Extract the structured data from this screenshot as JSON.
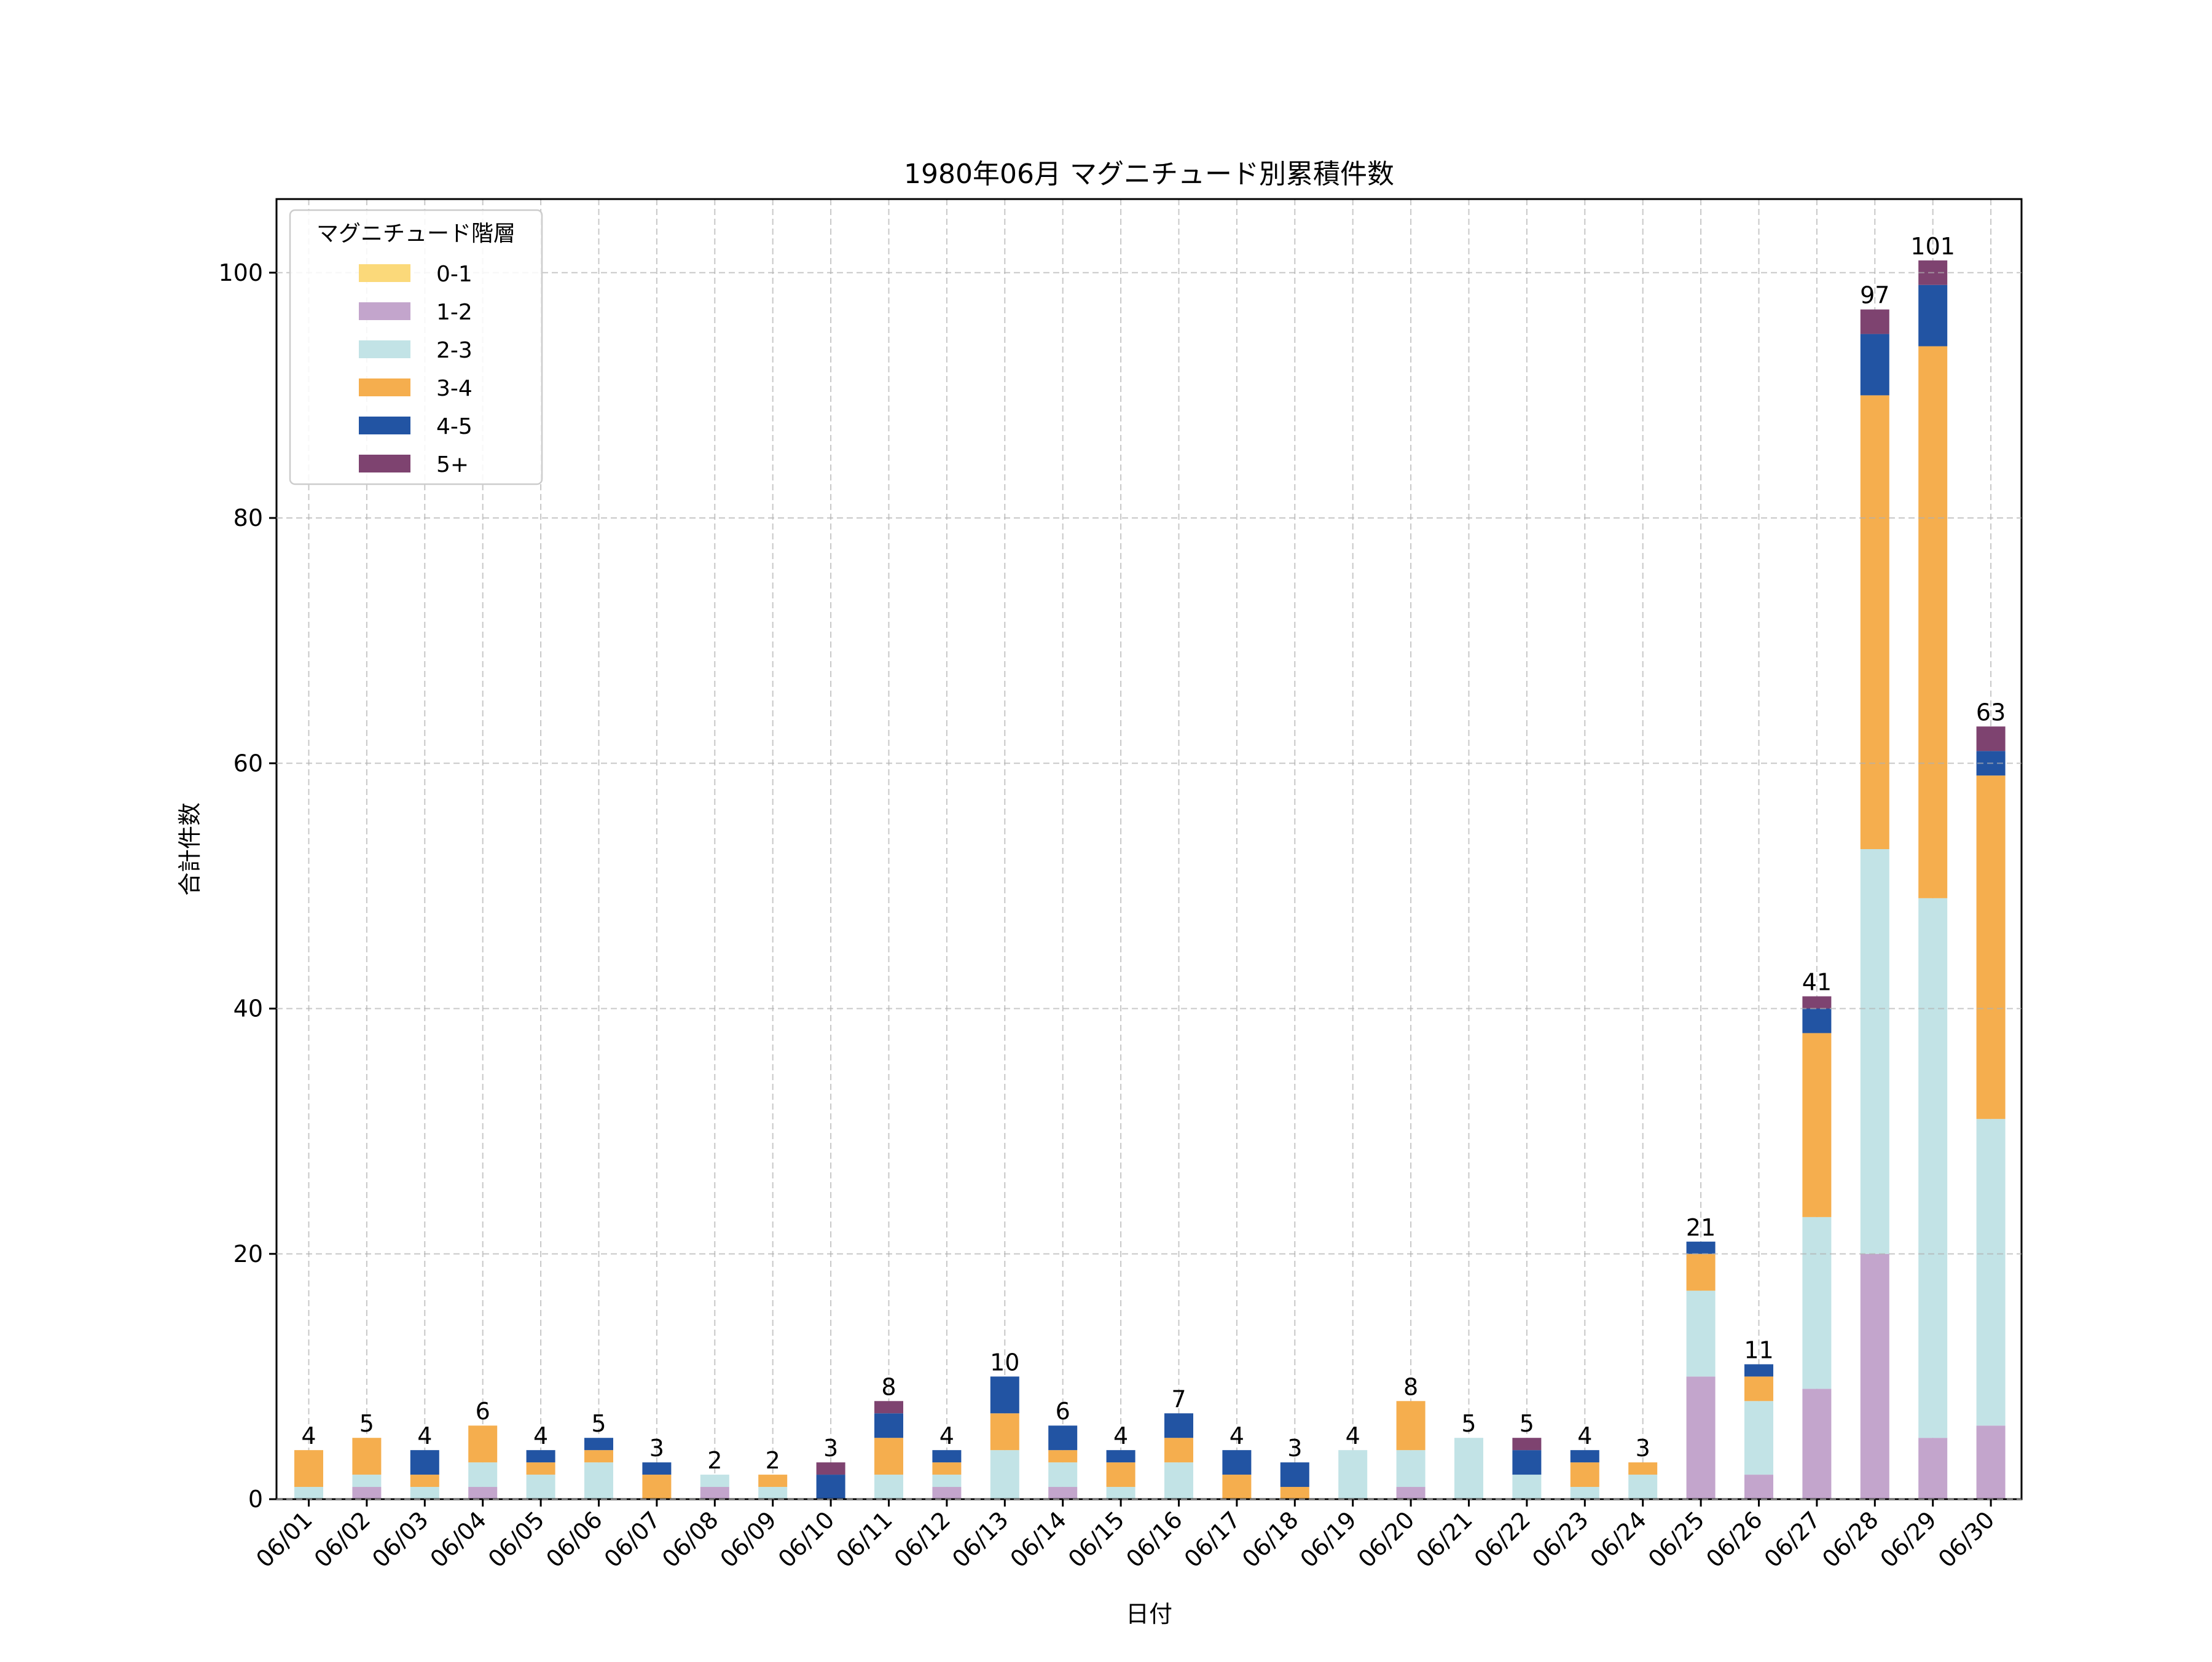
{
  "chart_data": {
    "type": "bar",
    "stacked": true,
    "title": "1980年06月 マグニチュード別累積件数",
    "xlabel": "日付",
    "ylabel": "合計件数",
    "ylim": [
      0,
      106
    ],
    "yticks": [
      0,
      20,
      40,
      60,
      80,
      100
    ],
    "grid": true,
    "legend": {
      "title": "マグニチュード階層",
      "placement": "top-left"
    },
    "categories": [
      "06/01",
      "06/02",
      "06/03",
      "06/04",
      "06/05",
      "06/06",
      "06/07",
      "06/08",
      "06/09",
      "06/10",
      "06/11",
      "06/12",
      "06/13",
      "06/14",
      "06/15",
      "06/16",
      "06/17",
      "06/18",
      "06/19",
      "06/20",
      "06/21",
      "06/22",
      "06/23",
      "06/24",
      "06/25",
      "06/26",
      "06/27",
      "06/28",
      "06/29",
      "06/30"
    ],
    "series": [
      {
        "name": "0-1",
        "color": "#FBD97A",
        "values": [
          0,
          0,
          0,
          0,
          0,
          0,
          0,
          0,
          0,
          0,
          0,
          0,
          0,
          0,
          0,
          0,
          0,
          0,
          0,
          0,
          0,
          0,
          0,
          0,
          0,
          0,
          0,
          0,
          0,
          0
        ]
      },
      {
        "name": "1-2",
        "color": "#C3A5CC",
        "values": [
          0,
          1,
          0,
          1,
          0,
          0,
          0,
          1,
          0,
          0,
          0,
          1,
          0,
          1,
          0,
          0,
          0,
          0,
          0,
          1,
          0,
          0,
          0,
          0,
          10,
          2,
          9,
          20,
          5,
          6
        ]
      },
      {
        "name": "2-3",
        "color": "#C2E3E6",
        "values": [
          1,
          1,
          1,
          2,
          2,
          3,
          0,
          1,
          1,
          0,
          2,
          1,
          4,
          2,
          1,
          3,
          0,
          0,
          4,
          3,
          5,
          2,
          1,
          2,
          7,
          6,
          14,
          33,
          44,
          25
        ]
      },
      {
        "name": "3-4",
        "color": "#F5AE4E",
        "values": [
          3,
          3,
          1,
          3,
          1,
          1,
          2,
          0,
          1,
          0,
          3,
          1,
          3,
          1,
          2,
          2,
          2,
          1,
          0,
          4,
          0,
          0,
          2,
          1,
          3,
          2,
          15,
          37,
          45,
          28
        ]
      },
      {
        "name": "4-5",
        "color": "#2254A3",
        "values": [
          0,
          0,
          2,
          0,
          1,
          1,
          1,
          0,
          0,
          2,
          2,
          1,
          3,
          2,
          1,
          2,
          2,
          2,
          0,
          0,
          0,
          2,
          1,
          0,
          1,
          1,
          2,
          5,
          5,
          2
        ]
      },
      {
        "name": "5+",
        "color": "#7E4370",
        "values": [
          0,
          0,
          0,
          0,
          0,
          0,
          0,
          0,
          0,
          1,
          1,
          0,
          0,
          0,
          0,
          0,
          0,
          0,
          0,
          0,
          0,
          1,
          0,
          0,
          0,
          0,
          1,
          2,
          2,
          2
        ]
      }
    ],
    "totals": [
      4,
      5,
      4,
      6,
      4,
      5,
      3,
      2,
      2,
      3,
      8,
      4,
      10,
      6,
      4,
      7,
      4,
      3,
      4,
      8,
      5,
      5,
      4,
      3,
      21,
      11,
      41,
      97,
      101,
      63
    ]
  }
}
